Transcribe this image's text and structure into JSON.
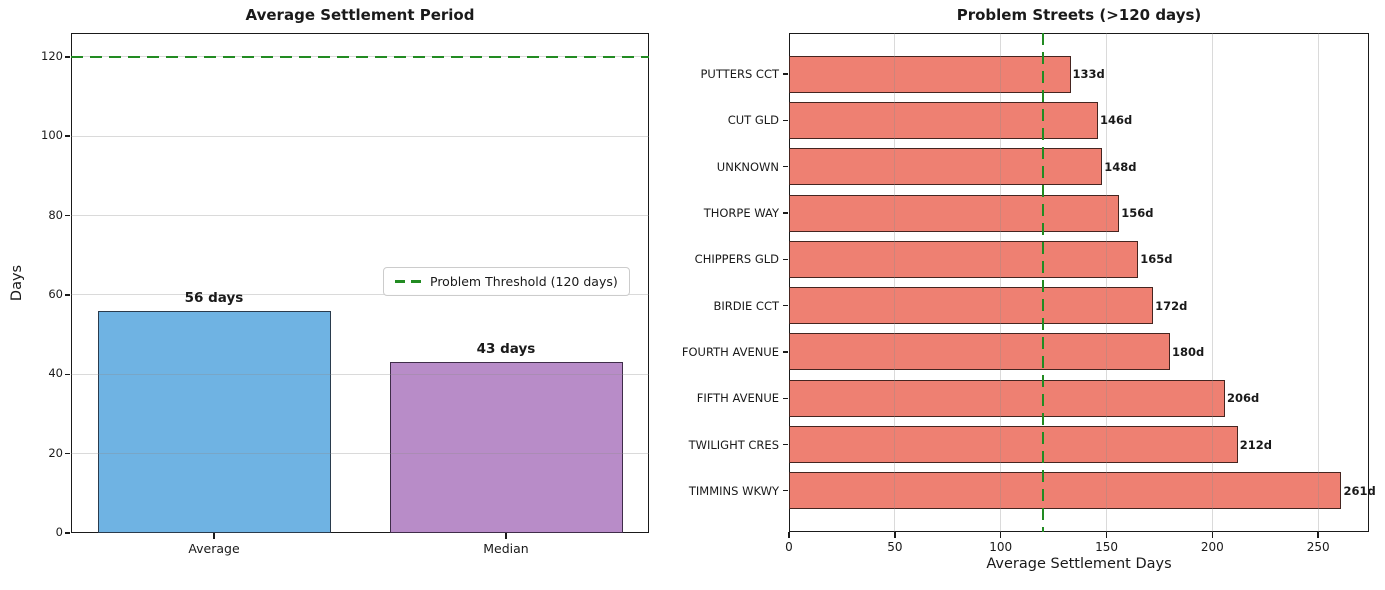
{
  "figure": {
    "background": "#ffffff"
  },
  "chart_data": [
    {
      "type": "bar",
      "title": "Average Settlement Period",
      "xlabel": "",
      "ylabel": "Days",
      "categories": [
        "Average",
        "Median"
      ],
      "values": [
        56,
        43
      ],
      "value_labels": [
        "56 days",
        "43 days"
      ],
      "bar_colors": [
        "#6fb3e3",
        "#b88cc8"
      ],
      "bar_edge_colors": [
        "#2a3b4d",
        "#3f2d49"
      ],
      "yticks": [
        0,
        20,
        40,
        60,
        80,
        100,
        120
      ],
      "ylim": [
        0,
        126
      ],
      "grid": "horizontal",
      "legend_position": "center right",
      "threshold": {
        "value": 120,
        "label": "Problem Threshold (120 days)",
        "color": "#228b22",
        "style": "dashed"
      }
    },
    {
      "type": "bar-horizontal",
      "title": "Problem Streets (>120 days)",
      "xlabel": "Average Settlement Days",
      "ylabel": "",
      "bars": [
        {
          "street": "PUTTERS CCT",
          "days": 133,
          "label": "133d"
        },
        {
          "street": "CUT GLD",
          "days": 146,
          "label": "146d"
        },
        {
          "street": "UNKNOWN",
          "days": 148,
          "label": "148d"
        },
        {
          "street": "THORPE WAY",
          "days": 156,
          "label": "156d"
        },
        {
          "street": "CHIPPERS GLD",
          "days": 165,
          "label": "165d"
        },
        {
          "street": "BIRDIE CCT",
          "days": 172,
          "label": "172d"
        },
        {
          "street": "FOURTH AVENUE",
          "days": 180,
          "label": "180d"
        },
        {
          "street": "FIFTH AVENUE",
          "days": 206,
          "label": "206d"
        },
        {
          "street": "TWILIGHT CRES",
          "days": 212,
          "label": "212d"
        },
        {
          "street": "TIMMINS WKWY",
          "days": 261,
          "label": "261d"
        }
      ],
      "bar_color": "#ee8072",
      "bar_edge_color": "#452520",
      "xticks": [
        0,
        50,
        100,
        150,
        200,
        250
      ],
      "xlim": [
        0,
        274
      ],
      "grid": "vertical",
      "threshold": {
        "value": 120,
        "color": "#228b22",
        "style": "dashed"
      }
    }
  ]
}
